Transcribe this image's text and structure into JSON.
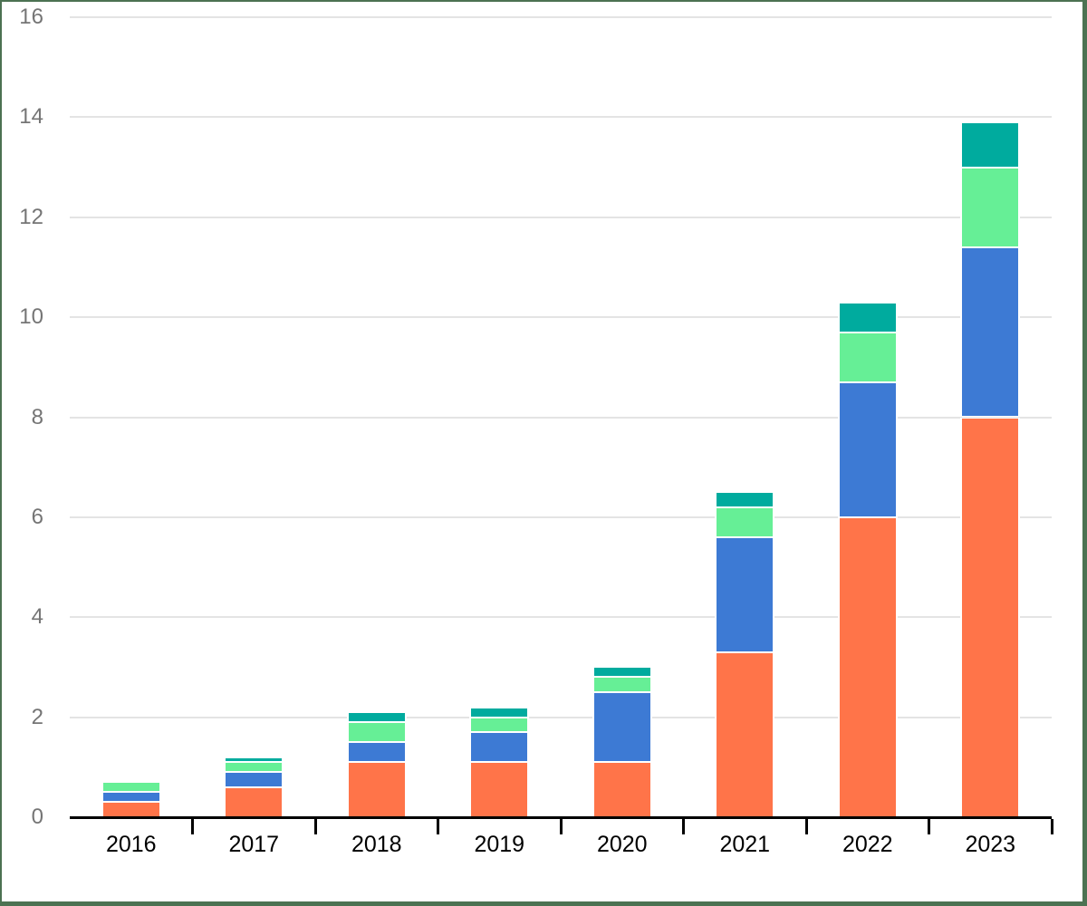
{
  "chart_data": {
    "type": "bar",
    "stacked": true,
    "title": "",
    "categories": [
      "2016",
      "2017",
      "2018",
      "2019",
      "2020",
      "2021",
      "2022",
      "2023"
    ],
    "series": [
      {
        "name": "orange",
        "color": "#ff7449",
        "values": [
          0.3,
          0.6,
          1.1,
          1.1,
          1.1,
          3.3,
          6.0,
          8.0
        ]
      },
      {
        "name": "blue",
        "color": "#3d7ad4",
        "values": [
          0.2,
          0.3,
          0.4,
          0.6,
          1.4,
          2.3,
          2.7,
          3.4
        ]
      },
      {
        "name": "green",
        "color": "#66ef96",
        "values": [
          0.2,
          0.2,
          0.4,
          0.3,
          0.3,
          0.6,
          1.0,
          1.6
        ]
      },
      {
        "name": "teal",
        "color": "#00ab9e",
        "values": [
          0.0,
          0.1,
          0.2,
          0.2,
          0.2,
          0.3,
          0.6,
          0.9
        ]
      }
    ],
    "totals": [
      0.7,
      1.2,
      2.1,
      2.2,
      3.0,
      6.5,
      10.3,
      13.9
    ],
    "ylim": [
      0,
      16
    ],
    "ytick_step": 2,
    "ytick_labels": [
      "0",
      "2",
      "4",
      "6",
      "8",
      "10",
      "12",
      "14",
      "16"
    ],
    "grid": true,
    "legend": false
  },
  "colors": {
    "background": "#ffffff",
    "frame_border": "#4c7252",
    "gridline": "#e4e4e4",
    "axis_line": "#000000",
    "x_label": "#000000",
    "y_label": "#757575",
    "segment_gap": "#ffffff"
  }
}
